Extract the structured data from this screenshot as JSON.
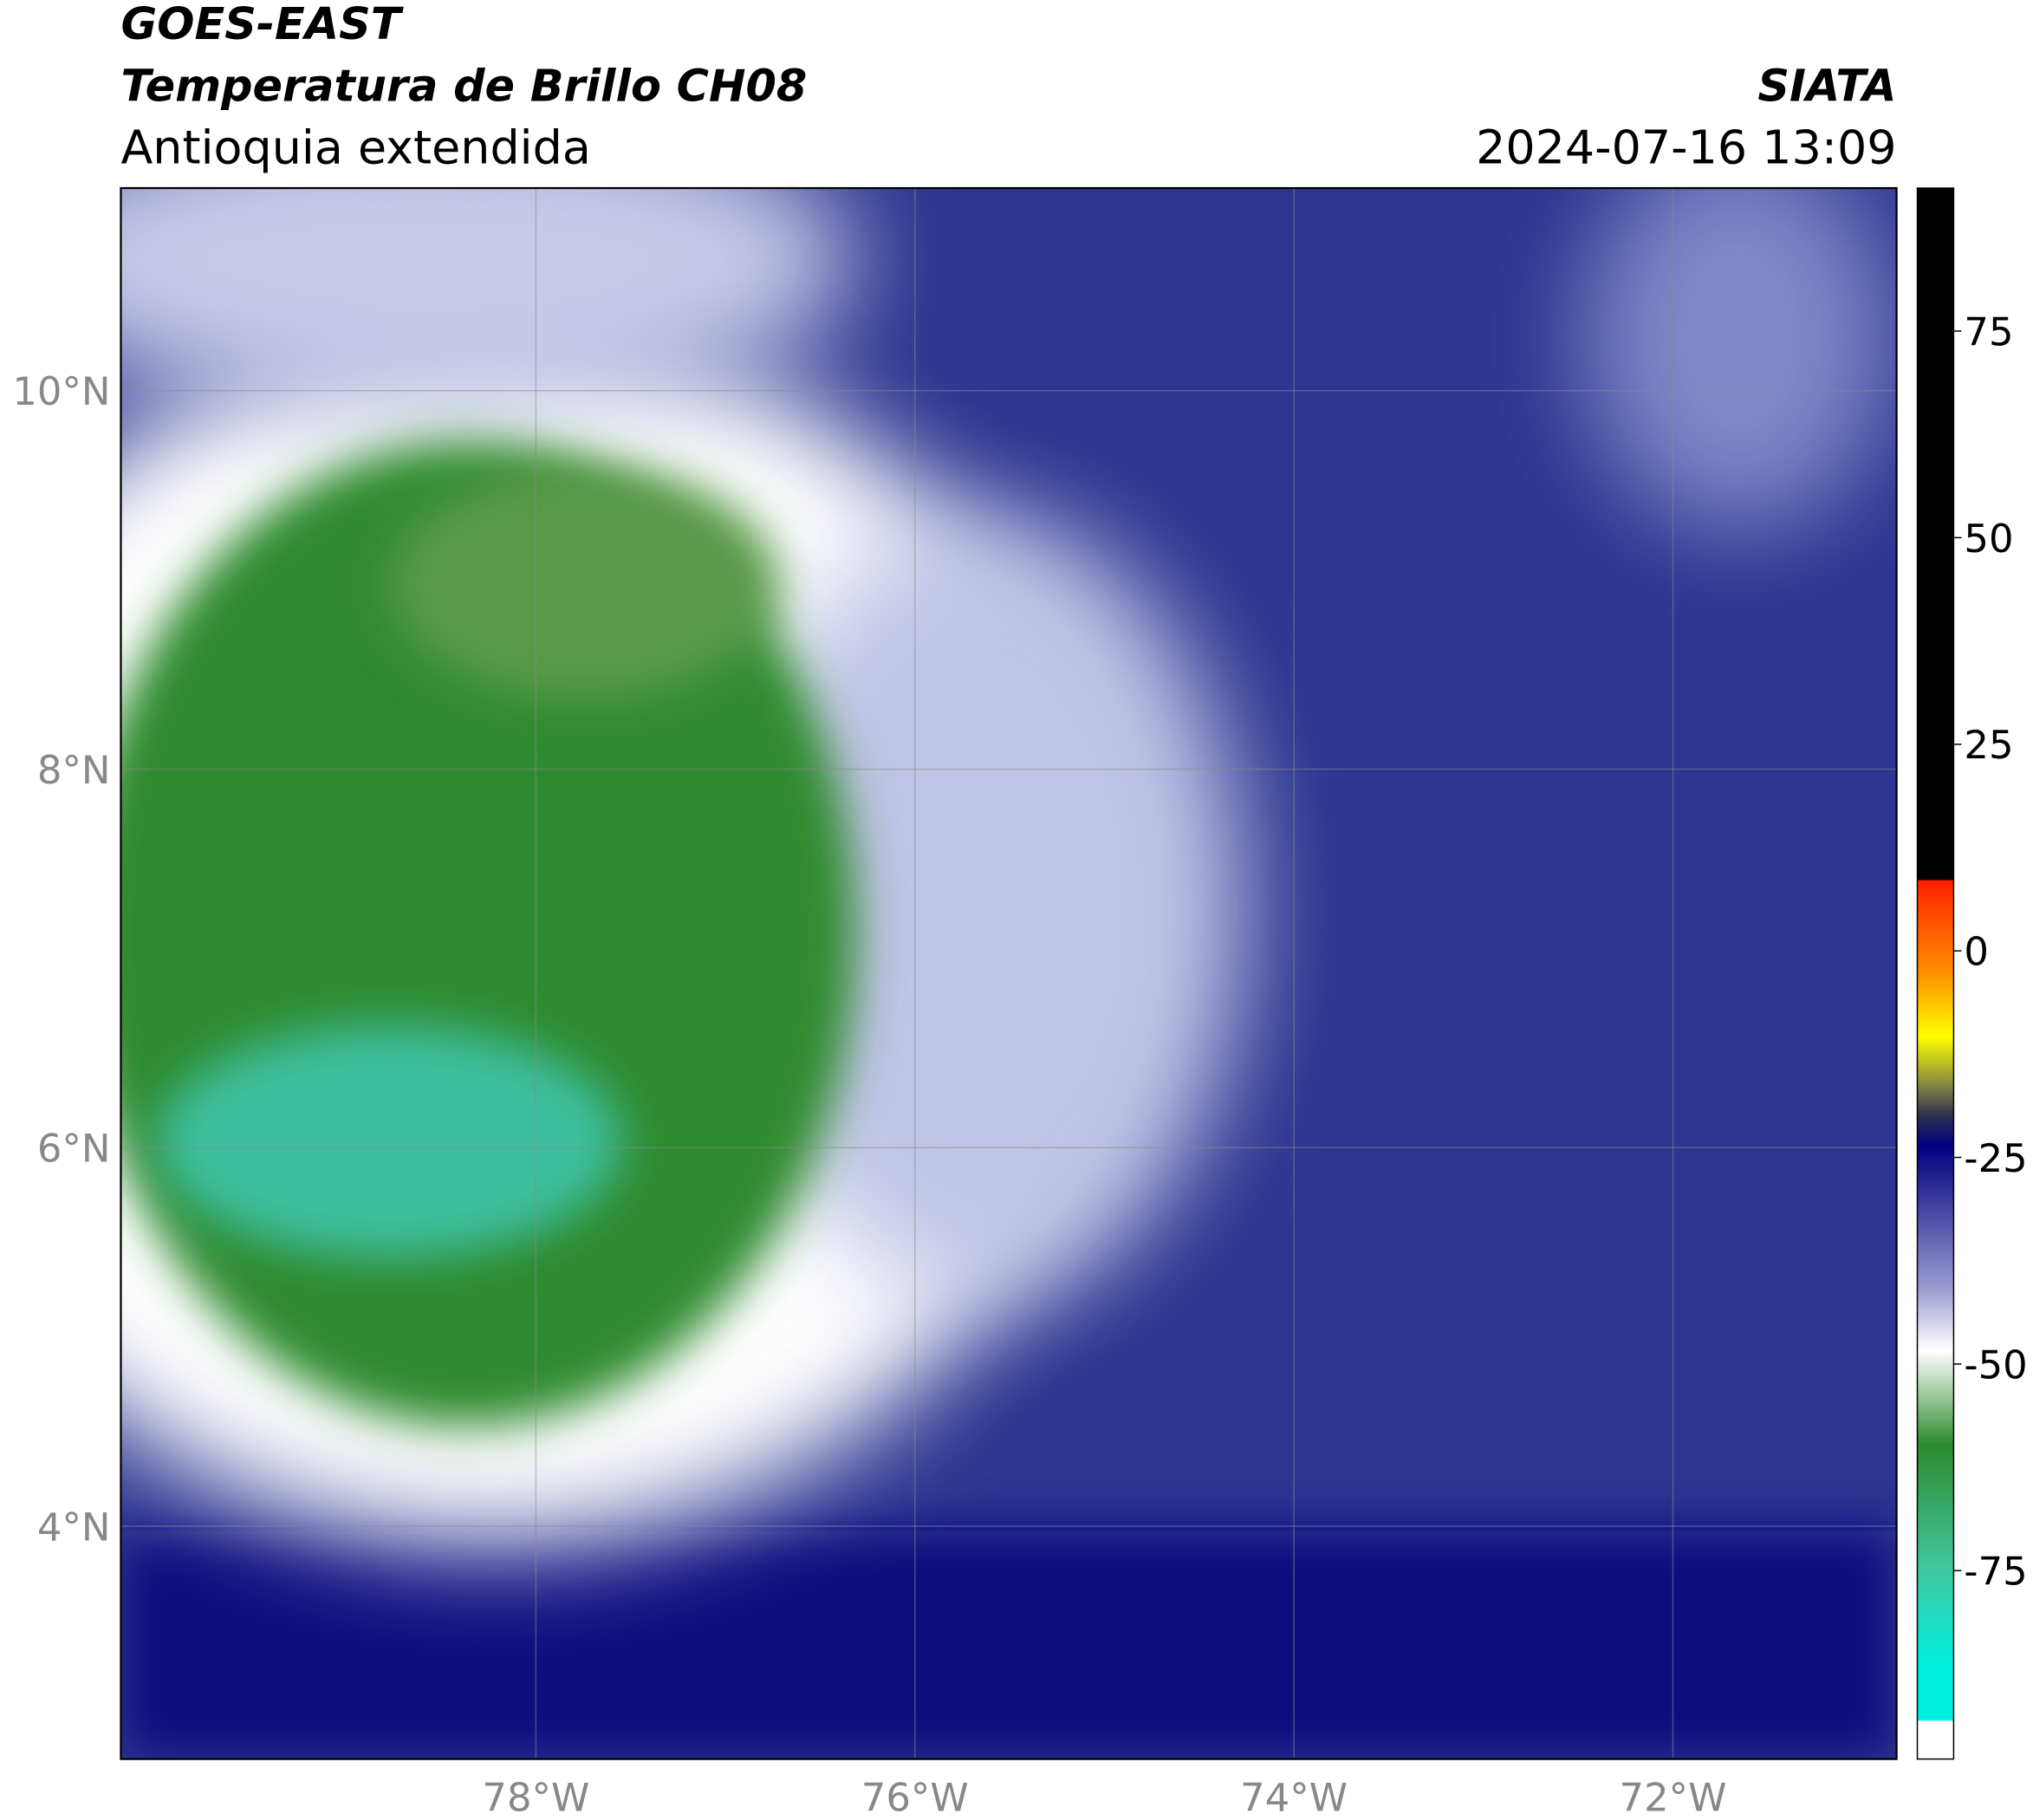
{
  "header": {
    "source": "GOES-EAST",
    "title": "Temperatura de Brillo CH08",
    "region": "Antioquia extendida",
    "agency": "SIATA",
    "datetime": "2024-07-16 13:09"
  },
  "map": {
    "lonlim": [
      -80.19,
      -70.82
    ],
    "latlim": [
      2.77,
      11.07
    ],
    "lon_ticks": [
      {
        "value": -78,
        "label": "78°W"
      },
      {
        "value": -76,
        "label": "76°W"
      },
      {
        "value": -74,
        "label": "74°W"
      },
      {
        "value": -72,
        "label": "72°W"
      }
    ],
    "lat_ticks": [
      {
        "value": 10,
        "label": "10°N"
      },
      {
        "value": 8,
        "label": "8°N"
      },
      {
        "value": 6,
        "label": "6°N"
      },
      {
        "value": 4,
        "label": "4°N"
      }
    ]
  },
  "colorbar": {
    "lim": [
      -97.8,
      92.3
    ],
    "ticks": [
      75,
      50,
      25,
      0,
      -25,
      -50,
      -75
    ]
  }
}
